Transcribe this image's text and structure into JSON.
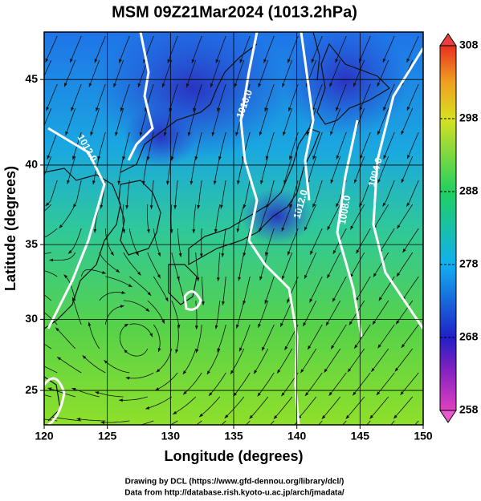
{
  "chart_data": {
    "type": "map",
    "title": "MSM 09Z21Mar2024 (1013.2hPa)",
    "x_label": "Longitude (degrees)",
    "y_label": "Latitude  (degrees)",
    "projection": "mercator",
    "xlim": [
      120,
      150
    ],
    "ylim": [
      22.5,
      47.6
    ],
    "xticks": [
      120,
      125,
      130,
      135,
      140,
      145,
      150
    ],
    "yticks": [
      25,
      30,
      35,
      40,
      45
    ],
    "grid": true,
    "colorbar": {
      "lim": [
        258,
        308
      ],
      "ticks": [
        258,
        268,
        278,
        288,
        298,
        308
      ]
    },
    "contour_labels": [
      "1016.0",
      "1012.0",
      "1008.0",
      "1004.0",
      "1012.0"
    ]
  },
  "footer": [
    "Drawing by DCL (https://www.gfd-dennou.org/library/dcl/)",
    "Data from http://database.rish.kyoto-u.ac.jp/arch/jmadata/"
  ]
}
